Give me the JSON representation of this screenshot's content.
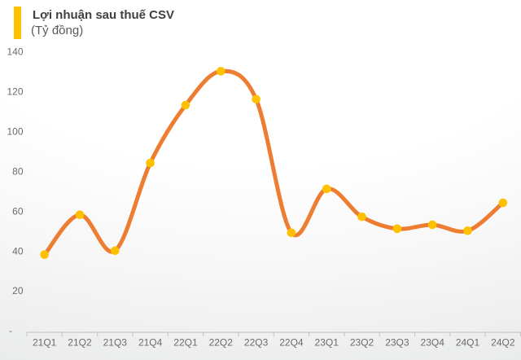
{
  "header": {
    "title": "Lợi nhuận sau thuế CSV",
    "subtitle": "(Tỷ đồng)",
    "accent_color": "#FFC000"
  },
  "chart_data": {
    "type": "line",
    "smooth": true,
    "title": "Lợi nhuận sau thuế CSV",
    "ylabel": "Tỷ đồng",
    "xlabel": "",
    "categories": [
      "21Q1",
      "21Q2",
      "21Q3",
      "21Q4",
      "22Q1",
      "22Q2",
      "22Q3",
      "22Q4",
      "23Q1",
      "23Q2",
      "23Q3",
      "23Q4",
      "24Q1",
      "24Q2"
    ],
    "values": [
      38,
      58,
      40,
      84,
      113,
      130,
      116,
      49,
      71,
      57,
      51,
      53,
      50,
      64
    ],
    "ylim": [
      0,
      140
    ],
    "y_ticks": [
      140,
      120,
      100,
      80,
      60,
      40,
      20,
      0
    ],
    "y_tick_labels": [
      "140",
      "120",
      "100",
      "80",
      "60",
      "40",
      "20",
      "-"
    ],
    "grid": false,
    "legend_position": "none",
    "line_color": "#ED7D31",
    "marker_color": "#FFC000",
    "axis_color": "#C8C8C8",
    "label_color": "#6B6B6B"
  }
}
